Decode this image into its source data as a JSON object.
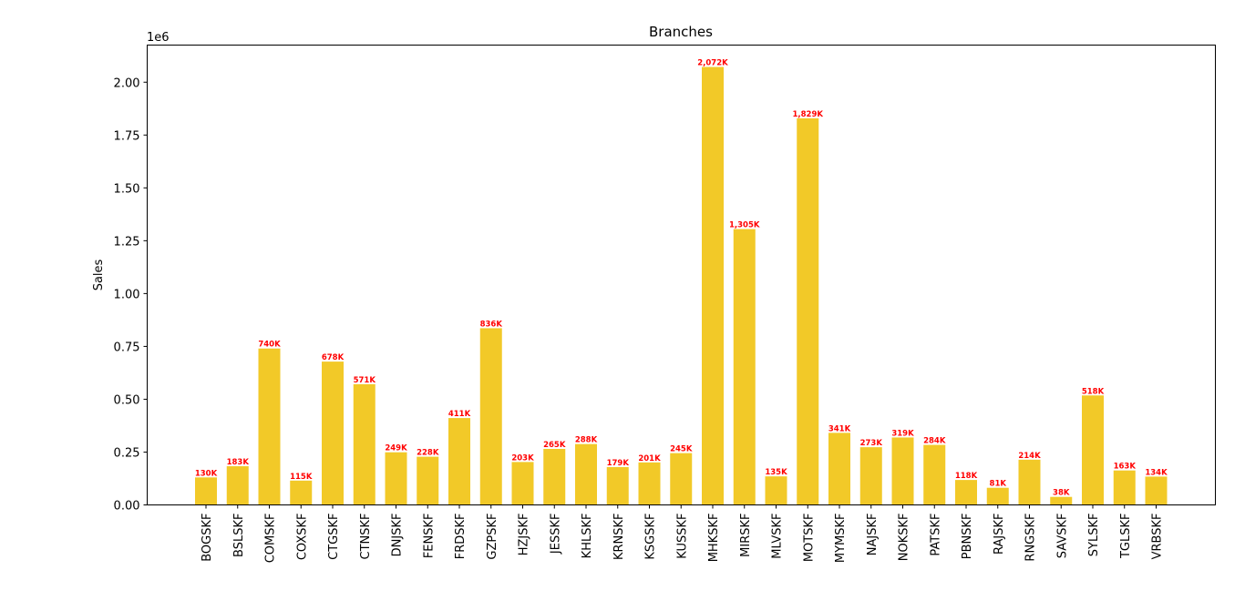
{
  "chart_data": {
    "type": "bar",
    "title": "Branches",
    "xlabel": "",
    "ylabel": "Sales",
    "y_offset_text": "1e6",
    "ylim": [
      0,
      2175600
    ],
    "yticks": [
      0,
      250000,
      500000,
      750000,
      1000000,
      1250000,
      1500000,
      1750000,
      2000000
    ],
    "ytick_labels": [
      "0.00",
      "0.25",
      "0.50",
      "0.75",
      "1.00",
      "1.25",
      "1.50",
      "1.75",
      "2.00"
    ],
    "grid": false,
    "bar_color": "#f2c928",
    "label_color": "#ff0000",
    "categories": [
      "BOGSKF",
      "BSLSKF",
      "COMSKF",
      "COXSKF",
      "CTGSKF",
      "CTNSKF",
      "DNJSKF",
      "FENSKF",
      "FRDSKF",
      "GZPSKF",
      "HZJSKF",
      "JESSKF",
      "KHLSKF",
      "KRNSKF",
      "KSGSKF",
      "KUSSKF",
      "MHKSKF",
      "MIRSKF",
      "MLVSKF",
      "MOTSKF",
      "MYMSKF",
      "NAJSKF",
      "NOKSKF",
      "PATSKF",
      "PBNSKF",
      "RAJSKF",
      "RNGSKF",
      "SAVSKF",
      "SYLSKF",
      "TGLSKF",
      "VRBSKF"
    ],
    "values": [
      130000,
      183000,
      740000,
      115000,
      678000,
      571000,
      249000,
      228000,
      411000,
      836000,
      203000,
      265000,
      288000,
      179000,
      201000,
      245000,
      2072000,
      1305000,
      135000,
      1829000,
      341000,
      273000,
      319000,
      284000,
      118000,
      81000,
      214000,
      38000,
      518000,
      163000,
      134000
    ],
    "data_labels": [
      "130K",
      "183K",
      "740K",
      "115K",
      "678K",
      "571K",
      "249K",
      "228K",
      "411K",
      "836K",
      "203K",
      "265K",
      "288K",
      "179K",
      "201K",
      "245K",
      "2,072K",
      "1,305K",
      "135K",
      "1,829K",
      "341K",
      "273K",
      "319K",
      "284K",
      "118K",
      "81K",
      "214K",
      "38K",
      "518K",
      "163K",
      "134K"
    ]
  }
}
